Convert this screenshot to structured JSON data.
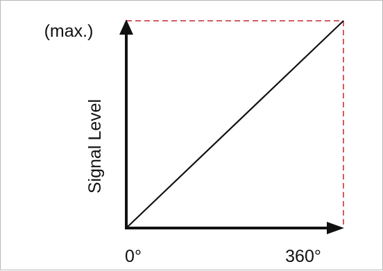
{
  "chart_data": {
    "type": "line",
    "title": "",
    "xlabel": "",
    "ylabel": "Signal Level",
    "x_tick_labels": [
      "0°",
      "360°"
    ],
    "y_tick_labels": [
      "(max.)"
    ],
    "xlim": [
      0,
      360
    ],
    "ylim": [
      0,
      1
    ],
    "series": [
      {
        "x": [
          0,
          360
        ],
        "y": [
          0,
          1
        ]
      }
    ],
    "guides": {
      "style": "dashed",
      "color": "#c0272d"
    },
    "axis_color": "#111111",
    "line_color": "#111111",
    "grid": false
  }
}
